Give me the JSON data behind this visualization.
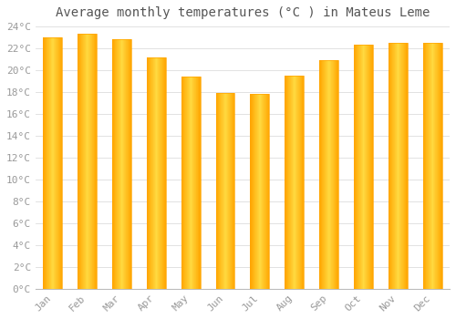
{
  "title": "Average monthly temperatures (°C ) in Mateus Leme",
  "months": [
    "Jan",
    "Feb",
    "Mar",
    "Apr",
    "May",
    "Jun",
    "Jul",
    "Aug",
    "Sep",
    "Oct",
    "Nov",
    "Dec"
  ],
  "values": [
    23.0,
    23.3,
    22.8,
    21.2,
    19.4,
    17.9,
    17.8,
    19.5,
    20.9,
    22.3,
    22.5,
    22.5
  ],
  "bar_color_left": "#FFA500",
  "bar_color_center": "#FFD060",
  "bar_color_right": "#FFA500",
  "background_color": "#FFFFFF",
  "plot_bg_color": "#FFFFFF",
  "grid_color": "#DDDDDD",
  "ylim": [
    0,
    24
  ],
  "yticks": [
    0,
    2,
    4,
    6,
    8,
    10,
    12,
    14,
    16,
    18,
    20,
    22,
    24
  ],
  "ytick_labels": [
    "0°C",
    "2°C",
    "4°C",
    "6°C",
    "8°C",
    "10°C",
    "12°C",
    "14°C",
    "16°C",
    "18°C",
    "20°C",
    "22°C",
    "24°C"
  ],
  "title_fontsize": 10,
  "tick_fontsize": 8,
  "font_family": "monospace",
  "tick_color": "#999999",
  "bar_width": 0.55
}
